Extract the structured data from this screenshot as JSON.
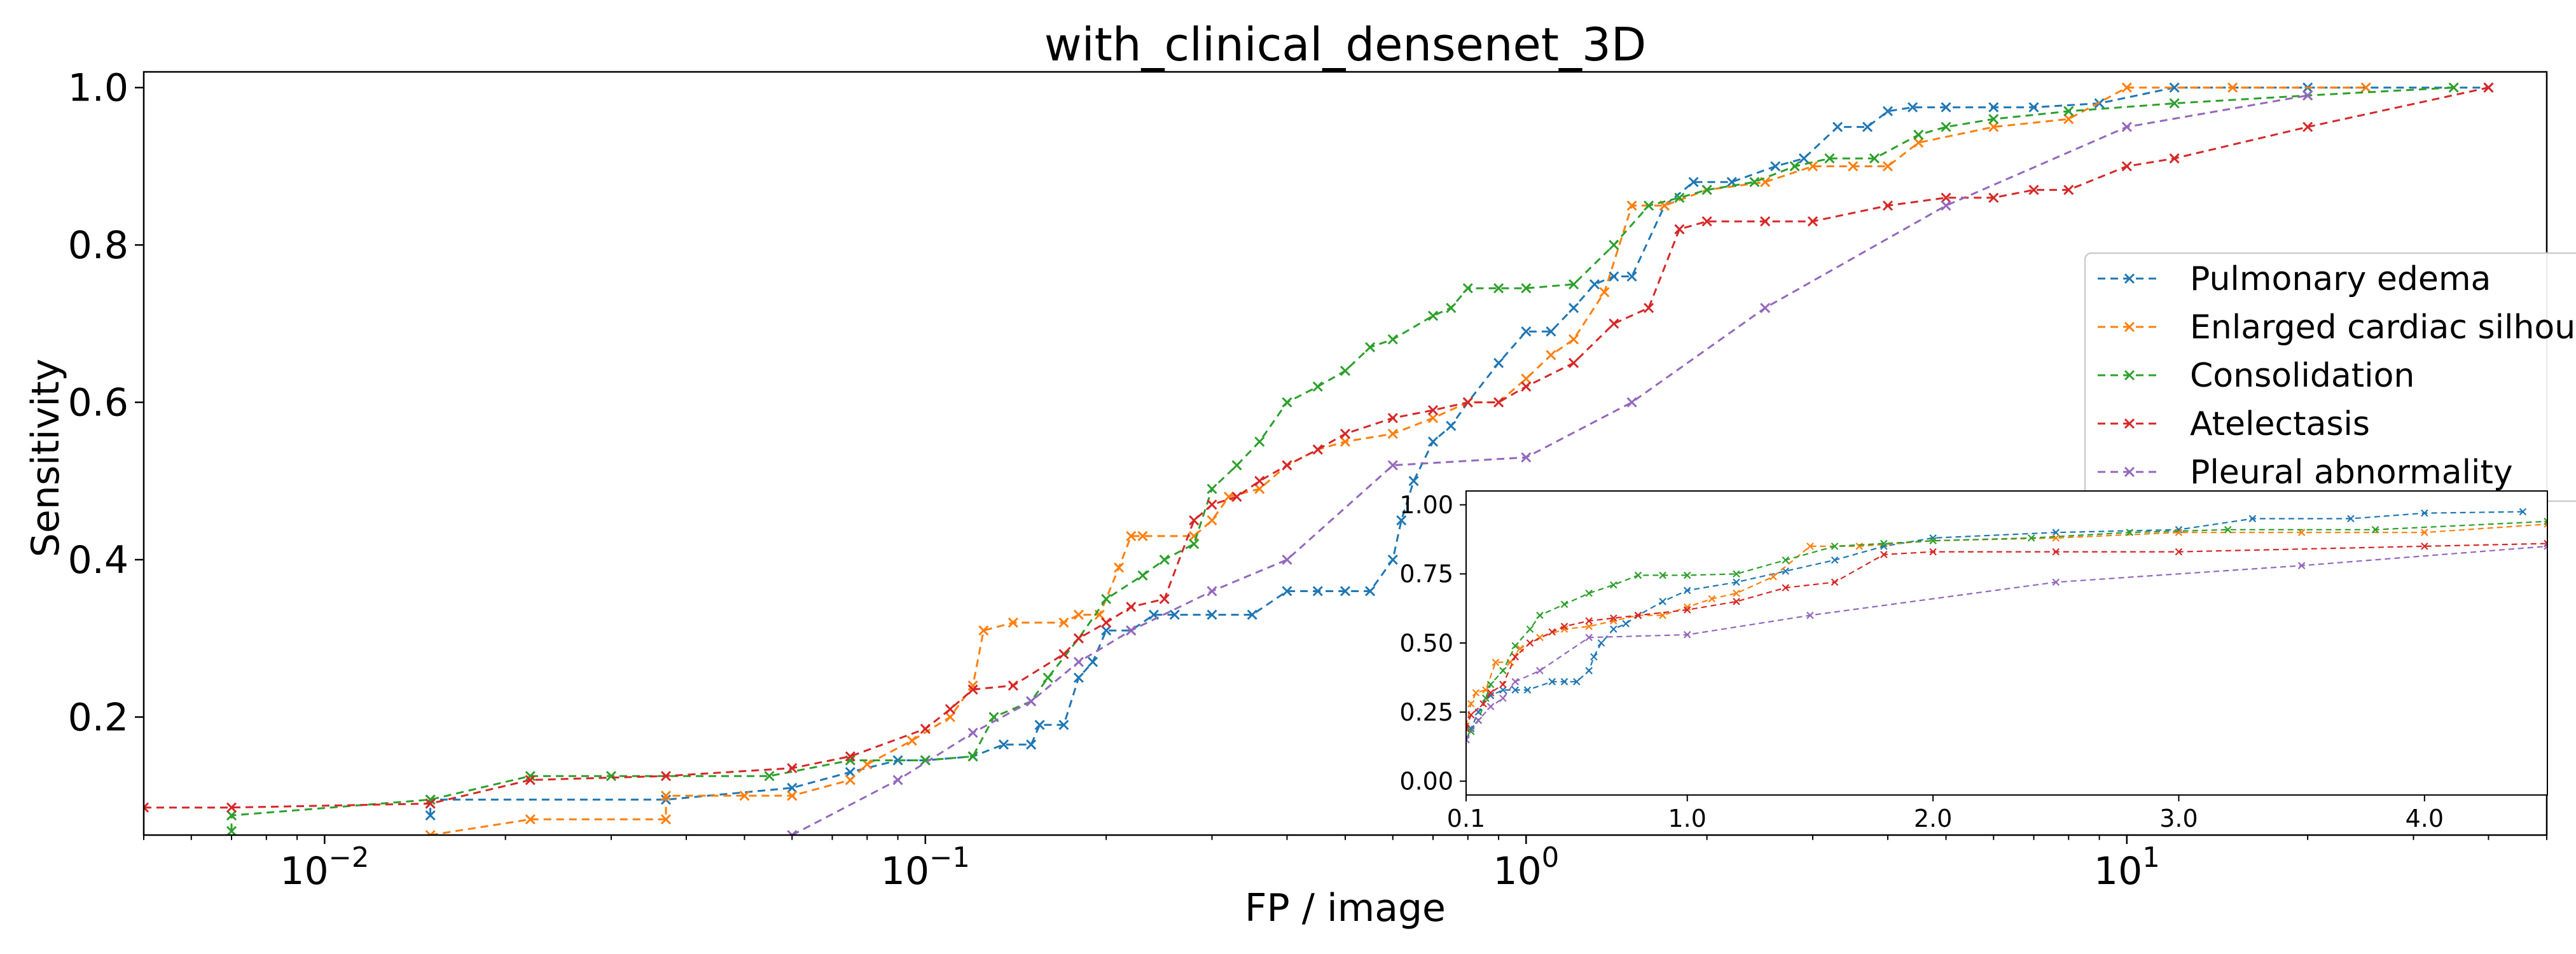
{
  "chart_data": [
    {
      "id": "main",
      "type": "line",
      "title": "with_clinical_densenet_3D",
      "xlabel": "FP / image",
      "ylabel": "Sensitivity",
      "xscale": "log",
      "xlim": [
        0.005,
        50
      ],
      "ylim": [
        0.05,
        1.02
      ],
      "xticks": [
        {
          "value": 0.01,
          "base": "10",
          "exp": "−2"
        },
        {
          "value": 0.1,
          "base": "10",
          "exp": "−1"
        },
        {
          "value": 1,
          "base": "10",
          "exp": "0"
        },
        {
          "value": 10,
          "base": "10",
          "exp": "1"
        }
      ],
      "yticks": [
        {
          "value": 0.2,
          "label": "0.2"
        },
        {
          "value": 0.4,
          "label": "0.4"
        },
        {
          "value": 0.6,
          "label": "0.6"
        },
        {
          "value": 0.8,
          "label": "0.8"
        },
        {
          "value": 1.0,
          "label": "1.0"
        }
      ],
      "grid": false,
      "legend_position": "right",
      "series": [
        {
          "name": "Pulmonary edema",
          "color": "#1f77b4",
          "x": [
            0.015,
            0.015,
            0.015,
            0.037,
            0.06,
            0.075,
            0.09,
            0.1,
            0.12,
            0.135,
            0.15,
            0.155,
            0.17,
            0.18,
            0.19,
            0.2,
            0.22,
            0.24,
            0.26,
            0.3,
            0.35,
            0.4,
            0.45,
            0.5,
            0.55,
            0.6,
            0.62,
            0.65,
            0.7,
            0.75,
            0.8,
            0.9,
            1.0,
            1.1,
            1.2,
            1.3,
            1.4,
            1.5,
            1.7,
            1.9,
            2.2,
            2.6,
            2.9,
            3.3,
            3.7,
            4.0,
            4.4,
            5.0,
            6.0,
            7.0,
            9.0,
            12.0,
            20.0,
            40.0
          ],
          "y": [
            0.075,
            0.09,
            0.095,
            0.095,
            0.11,
            0.13,
            0.145,
            0.145,
            0.15,
            0.165,
            0.165,
            0.19,
            0.19,
            0.25,
            0.27,
            0.31,
            0.31,
            0.33,
            0.33,
            0.33,
            0.33,
            0.36,
            0.36,
            0.36,
            0.36,
            0.4,
            0.45,
            0.5,
            0.55,
            0.57,
            0.6,
            0.65,
            0.69,
            0.69,
            0.72,
            0.75,
            0.76,
            0.76,
            0.85,
            0.88,
            0.88,
            0.9,
            0.91,
            0.95,
            0.95,
            0.97,
            0.975,
            0.975,
            0.975,
            0.975,
            0.98,
            1.0,
            1.0,
            1.0
          ]
        },
        {
          "name": "Enlarged cardiac silhouette",
          "color": "#ff7f0e",
          "x": [
            0.015,
            0.022,
            0.037,
            0.037,
            0.05,
            0.06,
            0.075,
            0.08,
            0.095,
            0.11,
            0.12,
            0.125,
            0.14,
            0.17,
            0.18,
            0.195,
            0.21,
            0.22,
            0.23,
            0.28,
            0.3,
            0.32,
            0.36,
            0.4,
            0.45,
            0.5,
            0.6,
            0.7,
            0.8,
            0.9,
            1.0,
            1.1,
            1.2,
            1.35,
            1.5,
            1.7,
            2.0,
            2.5,
            3.0,
            3.5,
            4.0,
            4.5,
            6.0,
            8.0,
            10.0,
            15.0,
            25.0
          ],
          "y": [
            0.05,
            0.07,
            0.07,
            0.1,
            0.1,
            0.1,
            0.12,
            0.14,
            0.17,
            0.2,
            0.24,
            0.31,
            0.32,
            0.32,
            0.33,
            0.33,
            0.39,
            0.43,
            0.43,
            0.43,
            0.45,
            0.48,
            0.49,
            0.52,
            0.54,
            0.55,
            0.56,
            0.58,
            0.6,
            0.6,
            0.63,
            0.66,
            0.68,
            0.74,
            0.85,
            0.85,
            0.87,
            0.88,
            0.9,
            0.9,
            0.9,
            0.93,
            0.95,
            0.96,
            1.0,
            1.0,
            1.0
          ]
        },
        {
          "name": "Consolidation",
          "color": "#2ca02c",
          "x": [
            0.007,
            0.007,
            0.015,
            0.022,
            0.03,
            0.055,
            0.075,
            0.1,
            0.12,
            0.13,
            0.15,
            0.16,
            0.18,
            0.2,
            0.23,
            0.25,
            0.28,
            0.3,
            0.33,
            0.36,
            0.4,
            0.45,
            0.5,
            0.55,
            0.6,
            0.7,
            0.75,
            0.8,
            0.9,
            1.0,
            1.2,
            1.4,
            1.6,
            1.8,
            2.0,
            2.4,
            2.8,
            3.2,
            3.8,
            4.5,
            5.0,
            6.0,
            8.0,
            12.0,
            20.0,
            35.0
          ],
          "y": [
            0.055,
            0.075,
            0.095,
            0.125,
            0.125,
            0.125,
            0.145,
            0.145,
            0.15,
            0.2,
            0.22,
            0.25,
            0.3,
            0.35,
            0.38,
            0.4,
            0.42,
            0.49,
            0.52,
            0.55,
            0.6,
            0.62,
            0.64,
            0.67,
            0.68,
            0.71,
            0.72,
            0.745,
            0.745,
            0.745,
            0.75,
            0.8,
            0.85,
            0.86,
            0.87,
            0.88,
            0.9,
            0.91,
            0.91,
            0.94,
            0.95,
            0.96,
            0.97,
            0.98,
            0.99,
            1.0
          ]
        },
        {
          "name": "Atelectasis",
          "color": "#d62728",
          "x": [
            0.005,
            0.007,
            0.015,
            0.022,
            0.037,
            0.06,
            0.075,
            0.1,
            0.11,
            0.12,
            0.14,
            0.17,
            0.18,
            0.2,
            0.22,
            0.25,
            0.28,
            0.3,
            0.33,
            0.36,
            0.4,
            0.45,
            0.5,
            0.6,
            0.7,
            0.8,
            0.9,
            1.0,
            1.2,
            1.4,
            1.6,
            1.8,
            2.0,
            2.5,
            3.0,
            4.0,
            5.0,
            6.0,
            7.0,
            8.0,
            10.0,
            12.0,
            20.0,
            40.0
          ],
          "y": [
            0.085,
            0.085,
            0.09,
            0.12,
            0.125,
            0.135,
            0.15,
            0.185,
            0.21,
            0.235,
            0.24,
            0.28,
            0.3,
            0.32,
            0.34,
            0.35,
            0.45,
            0.47,
            0.48,
            0.5,
            0.52,
            0.54,
            0.56,
            0.58,
            0.59,
            0.6,
            0.6,
            0.62,
            0.65,
            0.7,
            0.72,
            0.82,
            0.83,
            0.83,
            0.83,
            0.85,
            0.86,
            0.86,
            0.87,
            0.87,
            0.9,
            0.91,
            0.95,
            1.0
          ]
        },
        {
          "name": "Pleural abnormality",
          "color": "#9467bd",
          "x": [
            0.06,
            0.09,
            0.12,
            0.15,
            0.18,
            0.22,
            0.3,
            0.4,
            0.6,
            1.0,
            1.5,
            2.5,
            5.0,
            10.0,
            20.0
          ],
          "y": [
            0.05,
            0.12,
            0.18,
            0.22,
            0.27,
            0.31,
            0.36,
            0.4,
            0.52,
            0.53,
            0.6,
            0.72,
            0.85,
            0.95,
            0.99
          ]
        }
      ]
    },
    {
      "id": "inset",
      "type": "line",
      "title": "",
      "xlabel": "",
      "ylabel": "",
      "xscale": "linear",
      "xlim": [
        0.1,
        4.5
      ],
      "ylim": [
        -0.05,
        1.05
      ],
      "xticks": [
        {
          "value": 0.1,
          "label": "0.1"
        },
        {
          "value": 1.0,
          "label": "1.0"
        },
        {
          "value": 2.0,
          "label": "2.0"
        },
        {
          "value": 3.0,
          "label": "3.0"
        },
        {
          "value": 4.0,
          "label": "4.0"
        }
      ],
      "yticks": [
        {
          "value": 0.0,
          "label": "0.00"
        },
        {
          "value": 0.25,
          "label": "0.25"
        },
        {
          "value": 0.5,
          "label": "0.50"
        },
        {
          "value": 0.75,
          "label": "0.75"
        },
        {
          "value": 1.0,
          "label": "1.00"
        }
      ],
      "grid": false,
      "series": [
        {
          "name": "Pulmonary edema",
          "color": "#1f77b4",
          "x": [
            0.1,
            0.12,
            0.15,
            0.18,
            0.2,
            0.25,
            0.3,
            0.35,
            0.45,
            0.5,
            0.55,
            0.6,
            0.62,
            0.65,
            0.7,
            0.75,
            0.8,
            0.9,
            1.0,
            1.2,
            1.4,
            1.6,
            1.8,
            2.0,
            2.5,
            3.0,
            3.3,
            3.7,
            4.0,
            4.4
          ],
          "y": [
            0.15,
            0.19,
            0.25,
            0.3,
            0.31,
            0.33,
            0.33,
            0.33,
            0.36,
            0.36,
            0.36,
            0.4,
            0.45,
            0.5,
            0.55,
            0.57,
            0.6,
            0.65,
            0.69,
            0.72,
            0.76,
            0.8,
            0.85,
            0.88,
            0.9,
            0.91,
            0.95,
            0.95,
            0.97,
            0.975
          ]
        },
        {
          "name": "Enlarged cardiac silhouette",
          "color": "#ff7f0e",
          "x": [
            0.1,
            0.12,
            0.14,
            0.18,
            0.22,
            0.28,
            0.32,
            0.4,
            0.5,
            0.6,
            0.7,
            0.8,
            0.9,
            1.0,
            1.1,
            1.2,
            1.35,
            1.5,
            1.7,
            2.0,
            2.5,
            3.0,
            3.5,
            4.0,
            4.5
          ],
          "y": [
            0.2,
            0.28,
            0.32,
            0.33,
            0.43,
            0.43,
            0.48,
            0.52,
            0.55,
            0.56,
            0.58,
            0.6,
            0.6,
            0.63,
            0.66,
            0.68,
            0.74,
            0.85,
            0.85,
            0.87,
            0.88,
            0.9,
            0.9,
            0.9,
            0.93
          ]
        },
        {
          "name": "Consolidation",
          "color": "#2ca02c",
          "x": [
            0.1,
            0.12,
            0.15,
            0.18,
            0.2,
            0.25,
            0.3,
            0.36,
            0.4,
            0.5,
            0.6,
            0.7,
            0.8,
            0.9,
            1.0,
            1.2,
            1.4,
            1.6,
            1.8,
            2.0,
            2.4,
            2.8,
            3.2,
            3.8,
            4.5
          ],
          "y": [
            0.15,
            0.18,
            0.22,
            0.3,
            0.35,
            0.4,
            0.49,
            0.55,
            0.6,
            0.64,
            0.68,
            0.71,
            0.745,
            0.745,
            0.745,
            0.75,
            0.8,
            0.85,
            0.86,
            0.87,
            0.88,
            0.9,
            0.91,
            0.91,
            0.94
          ]
        },
        {
          "name": "Atelectasis",
          "color": "#d62728",
          "x": [
            0.1,
            0.12,
            0.17,
            0.2,
            0.25,
            0.3,
            0.36,
            0.45,
            0.5,
            0.6,
            0.7,
            0.8,
            1.0,
            1.2,
            1.4,
            1.6,
            1.8,
            2.0,
            2.5,
            3.0,
            4.0,
            4.5
          ],
          "y": [
            0.19,
            0.24,
            0.28,
            0.32,
            0.35,
            0.45,
            0.5,
            0.54,
            0.56,
            0.58,
            0.59,
            0.6,
            0.62,
            0.65,
            0.7,
            0.72,
            0.82,
            0.83,
            0.83,
            0.83,
            0.85,
            0.86
          ]
        },
        {
          "name": "Pleural abnormality",
          "color": "#9467bd",
          "x": [
            0.1,
            0.15,
            0.2,
            0.25,
            0.3,
            0.4,
            0.6,
            1.0,
            1.5,
            2.5,
            3.5,
            4.5
          ],
          "y": [
            0.15,
            0.22,
            0.27,
            0.3,
            0.36,
            0.4,
            0.52,
            0.53,
            0.6,
            0.72,
            0.78,
            0.85
          ]
        }
      ]
    }
  ],
  "legend": [
    {
      "label": "Pulmonary edema",
      "color": "#1f77b4"
    },
    {
      "label": "Enlarged cardiac silhou",
      "color": "#ff7f0e"
    },
    {
      "label": "Consolidation",
      "color": "#2ca02c"
    },
    {
      "label": "Atelectasis",
      "color": "#d62728"
    },
    {
      "label": "Pleural abnormality",
      "color": "#9467bd"
    }
  ]
}
